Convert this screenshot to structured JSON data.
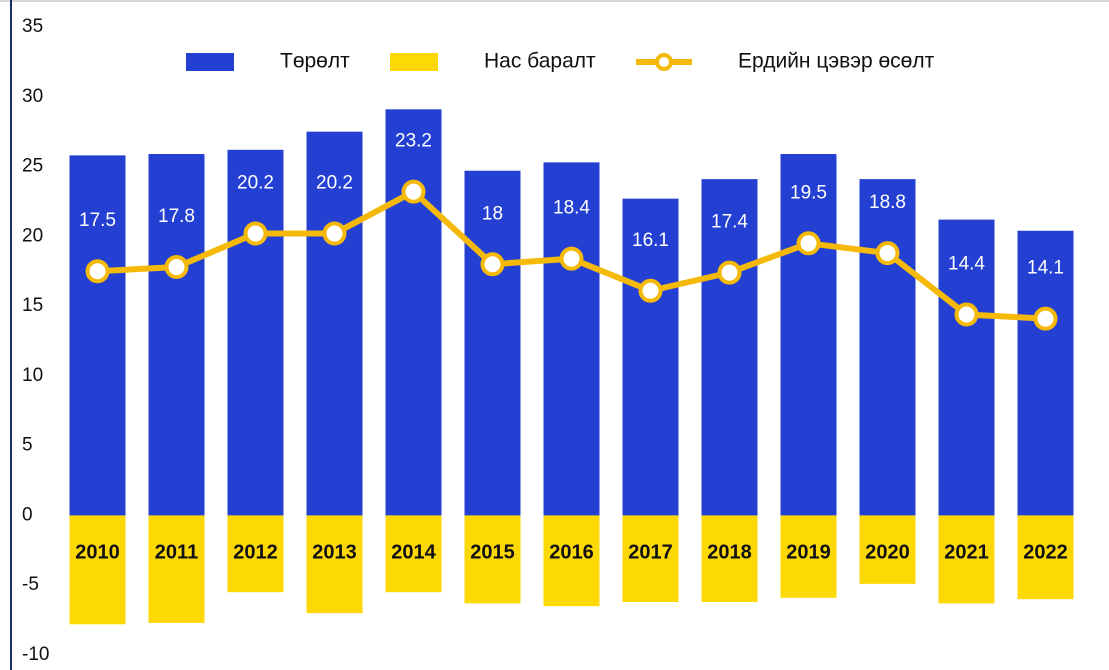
{
  "chart_data": {
    "type": "bar",
    "categories": [
      "2010",
      "2011",
      "2012",
      "2013",
      "2014",
      "2015",
      "2016",
      "2017",
      "2018",
      "2019",
      "2020",
      "2021",
      "2022"
    ],
    "series": [
      {
        "name": "Төрөлт",
        "type": "bar",
        "color": "#2340d3",
        "values": [
          25.8,
          25.9,
          26.2,
          27.5,
          29.1,
          24.7,
          25.3,
          22.7,
          24.1,
          25.9,
          24.1,
          21.2,
          20.4
        ]
      },
      {
        "name": "Нас баралт",
        "type": "bar",
        "color": "#fcd804",
        "values": [
          -7.8,
          -7.7,
          -5.5,
          -7.0,
          -5.5,
          -6.3,
          -6.5,
          -6.2,
          -6.2,
          -5.9,
          -4.9,
          -6.3,
          -6.0
        ]
      },
      {
        "name": "Ердийн цэвэр өсөлт",
        "type": "line",
        "color": "#f5b90a",
        "values": [
          17.5,
          17.8,
          20.2,
          20.2,
          23.2,
          18,
          18.4,
          16.1,
          17.4,
          19.5,
          18.8,
          14.4,
          14.1
        ]
      }
    ],
    "ylim": [
      -10,
      35
    ],
    "yticks": [
      -10,
      -5,
      0,
      5,
      10,
      15,
      20,
      25,
      30,
      35
    ]
  }
}
